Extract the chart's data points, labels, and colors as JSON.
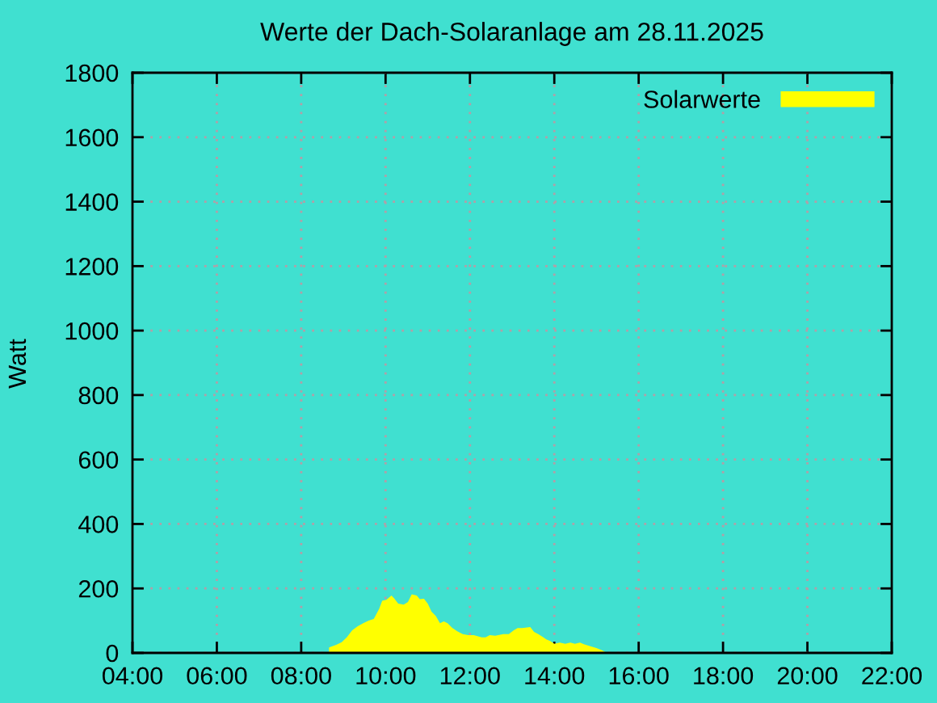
{
  "chart_data": {
    "type": "area",
    "title": "Werte der Dach-Solaranlage am 28.11.2025",
    "ylabel": "Watt",
    "x": [
      8.66,
      8.83,
      8.96,
      9.08,
      9.21,
      9.34,
      9.47,
      9.6,
      9.72,
      9.85,
      9.92,
      10.02,
      10.14,
      10.2,
      10.3,
      10.43,
      10.53,
      10.62,
      10.74,
      10.81,
      10.91,
      11.0,
      11.09,
      11.19,
      11.29,
      11.38,
      11.47,
      11.58,
      11.7,
      11.83,
      11.96,
      12.09,
      12.28,
      12.37,
      12.47,
      12.6,
      12.79,
      12.92,
      13.04,
      13.13,
      13.24,
      13.43,
      13.52,
      13.62,
      13.72,
      13.81,
      13.9,
      14.0,
      14.13,
      14.26,
      14.38,
      14.49,
      14.61,
      14.7,
      14.87,
      15.0,
      15.13,
      15.25,
      15.36
    ],
    "series": [
      {
        "name": "Solarwerte",
        "color": "#ffff00",
        "values": [
          17,
          25,
          33,
          48,
          70,
          83,
          92,
          100,
          105,
          137,
          162,
          165,
          178,
          170,
          153,
          150,
          158,
          182,
          178,
          167,
          168,
          153,
          128,
          115,
          92,
          98,
          92,
          78,
          67,
          58,
          55,
          55,
          48,
          48,
          55,
          53,
          58,
          58,
          70,
          77,
          77,
          80,
          65,
          58,
          50,
          42,
          37,
          28,
          32,
          28,
          32,
          28,
          32,
          27,
          20,
          15,
          8,
          0,
          0
        ]
      }
    ],
    "xlim": [
      4,
      22
    ],
    "xticks": [
      {
        "value": 4,
        "label": "04:00"
      },
      {
        "value": 6,
        "label": "06:00"
      },
      {
        "value": 8,
        "label": "08:00"
      },
      {
        "value": 10,
        "label": "10:00"
      },
      {
        "value": 12,
        "label": "12:00"
      },
      {
        "value": 14,
        "label": "14:00"
      },
      {
        "value": 16,
        "label": "16:00"
      },
      {
        "value": 18,
        "label": "18:00"
      },
      {
        "value": 20,
        "label": "20:00"
      },
      {
        "value": 22,
        "label": "22:00"
      }
    ],
    "ylim": [
      0,
      1800
    ],
    "yticks": [
      0,
      200,
      400,
      600,
      800,
      1000,
      1200,
      1400,
      1600,
      1800
    ],
    "grid": true,
    "legend": "top right"
  }
}
